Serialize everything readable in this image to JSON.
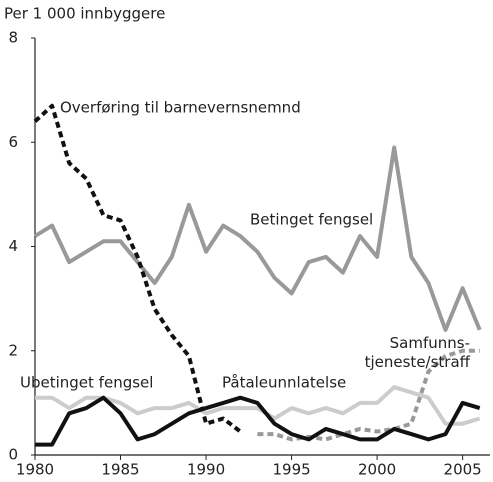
{
  "chart_data": {
    "type": "line",
    "y_label": "Per 1 000 innbyggere",
    "x": [
      1980,
      1981,
      1982,
      1983,
      1984,
      1985,
      1986,
      1987,
      1988,
      1989,
      1990,
      1991,
      1992,
      1993,
      1994,
      1995,
      1996,
      1997,
      1998,
      1999,
      2000,
      2001,
      2002,
      2003,
      2004,
      2005,
      2006
    ],
    "xlim": [
      1980,
      2006.6
    ],
    "xticks": [
      1980,
      1985,
      1990,
      1995,
      2000,
      2005
    ],
    "ylim": [
      0,
      8
    ],
    "yticks": [
      0,
      2,
      4,
      6,
      8
    ],
    "grid": false,
    "series": [
      {
        "name": "Betinget fengsel",
        "color": "#999999",
        "dash": false,
        "values": [
          4.2,
          4.4,
          3.7,
          3.9,
          4.1,
          4.1,
          3.7,
          3.3,
          3.8,
          4.8,
          3.9,
          4.4,
          4.2,
          3.9,
          3.4,
          3.1,
          3.7,
          3.8,
          3.5,
          4.2,
          3.8,
          5.9,
          3.8,
          3.3,
          2.4,
          3.2,
          2.4
        ]
      },
      {
        "name": "Overføring til barnevernsnemnd",
        "color": "#111111",
        "dash": true,
        "values": [
          6.4,
          6.7,
          5.6,
          5.3,
          4.6,
          4.5,
          3.8,
          2.8,
          2.3,
          1.9,
          0.6,
          0.7,
          0.45,
          null,
          null,
          null,
          null,
          null,
          null,
          null,
          null,
          null,
          null,
          null,
          null,
          null,
          null
        ]
      },
      {
        "name": "Samfunns- tjeneste/straff",
        "color": "#999999",
        "dash": true,
        "values": [
          null,
          null,
          null,
          null,
          null,
          null,
          null,
          null,
          null,
          null,
          null,
          null,
          null,
          0.4,
          0.4,
          0.3,
          0.35,
          0.3,
          0.4,
          0.5,
          0.45,
          0.5,
          0.6,
          1.6,
          1.9,
          2.0,
          2.0
        ]
      },
      {
        "name": "Ubetinget fengsel",
        "color": "#cccccc",
        "dash": false,
        "values": [
          1.1,
          1.1,
          0.9,
          1.1,
          1.1,
          1.0,
          0.8,
          0.9,
          0.9,
          1.0,
          0.8,
          0.9,
          0.9,
          0.9,
          0.7,
          0.9,
          0.8,
          0.9,
          0.8,
          1.0,
          1.0,
          1.3,
          1.2,
          1.1,
          0.6,
          0.6,
          0.7
        ]
      },
      {
        "name": "Påtaleunnlatelse",
        "color": "#111111",
        "dash": false,
        "values": [
          0.2,
          0.2,
          0.8,
          0.9,
          1.1,
          0.8,
          0.3,
          0.4,
          0.6,
          0.8,
          0.9,
          1.0,
          1.1,
          1.0,
          0.6,
          0.4,
          0.3,
          0.5,
          0.4,
          0.3,
          0.3,
          0.5,
          0.4,
          0.3,
          0.4,
          1.0,
          0.9
        ]
      }
    ]
  }
}
